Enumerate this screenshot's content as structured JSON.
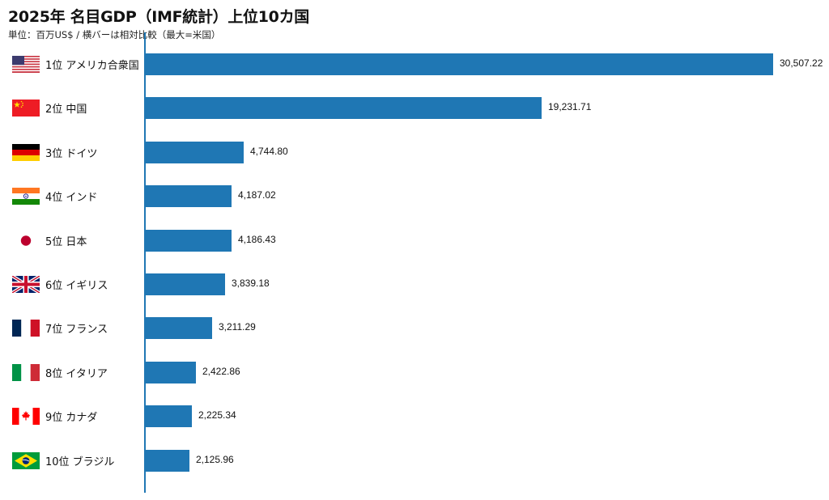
{
  "header": {
    "title": "2025年 名目GDP（IMF統計）上位10カ国",
    "subtitle": "単位：百万US$ / 横バーは相対比較（最大=米国）"
  },
  "colors": {
    "bar": "#1f77b4",
    "axis": "#1f77b4"
  },
  "rows": [
    {
      "rank_label": "1位 アメリカ合衆国",
      "country": "アメリカ合衆国",
      "flag": "us-flag-icon",
      "value": 30507.22,
      "value_label": "30,507.22"
    },
    {
      "rank_label": "2位 中国",
      "country": "中国",
      "flag": "china-flag-icon",
      "value": 19231.71,
      "value_label": "19,231.71"
    },
    {
      "rank_label": "3位 ドイツ",
      "country": "ドイツ",
      "flag": "germany-flag-icon",
      "value": 4744.8,
      "value_label": "4,744.80"
    },
    {
      "rank_label": "4位 インド",
      "country": "インド",
      "flag": "india-flag-icon",
      "value": 4187.02,
      "value_label": "4,187.02"
    },
    {
      "rank_label": "5位 日本",
      "country": "日本",
      "flag": "japan-flag-icon",
      "value": 4186.43,
      "value_label": "4,186.43"
    },
    {
      "rank_label": "6位 イギリス",
      "country": "イギリス",
      "flag": "uk-flag-icon",
      "value": 3839.18,
      "value_label": "3,839.18"
    },
    {
      "rank_label": "7位 フランス",
      "country": "フランス",
      "flag": "france-flag-icon",
      "value": 3211.29,
      "value_label": "3,211.29"
    },
    {
      "rank_label": "8位 イタリア",
      "country": "イタリア",
      "flag": "italy-flag-icon",
      "value": 2422.86,
      "value_label": "2,422.86"
    },
    {
      "rank_label": "9位 カナダ",
      "country": "カナダ",
      "flag": "canada-flag-icon",
      "value": 2225.34,
      "value_label": "2,225.34"
    },
    {
      "rank_label": "10位 ブラジル",
      "country": "ブラジル",
      "flag": "brazil-flag-icon",
      "value": 2125.96,
      "value_label": "2,125.96"
    }
  ],
  "chart_data": {
    "type": "bar",
    "orientation": "horizontal",
    "title": "2025年 名目GDP（IMF統計）上位10カ国",
    "subtitle": "単位：百万US$ / 横バーは相対比較（最大=米国）",
    "xlabel": "",
    "ylabel": "",
    "categories": [
      "1位 アメリカ合衆国",
      "2位 中国",
      "3位 ドイツ",
      "4位 インド",
      "5位 日本",
      "6位 イギリス",
      "7位 フランス",
      "8位 イタリア",
      "9位 カナダ",
      "10位 ブラジル"
    ],
    "values": [
      30507.22,
      19231.71,
      4744.8,
      4187.02,
      4186.43,
      3839.18,
      3211.29,
      2422.86,
      2225.34,
      2125.96
    ],
    "xlim": [
      0,
      30507.22
    ],
    "grid": false,
    "legend": null,
    "data_labels": true
  }
}
